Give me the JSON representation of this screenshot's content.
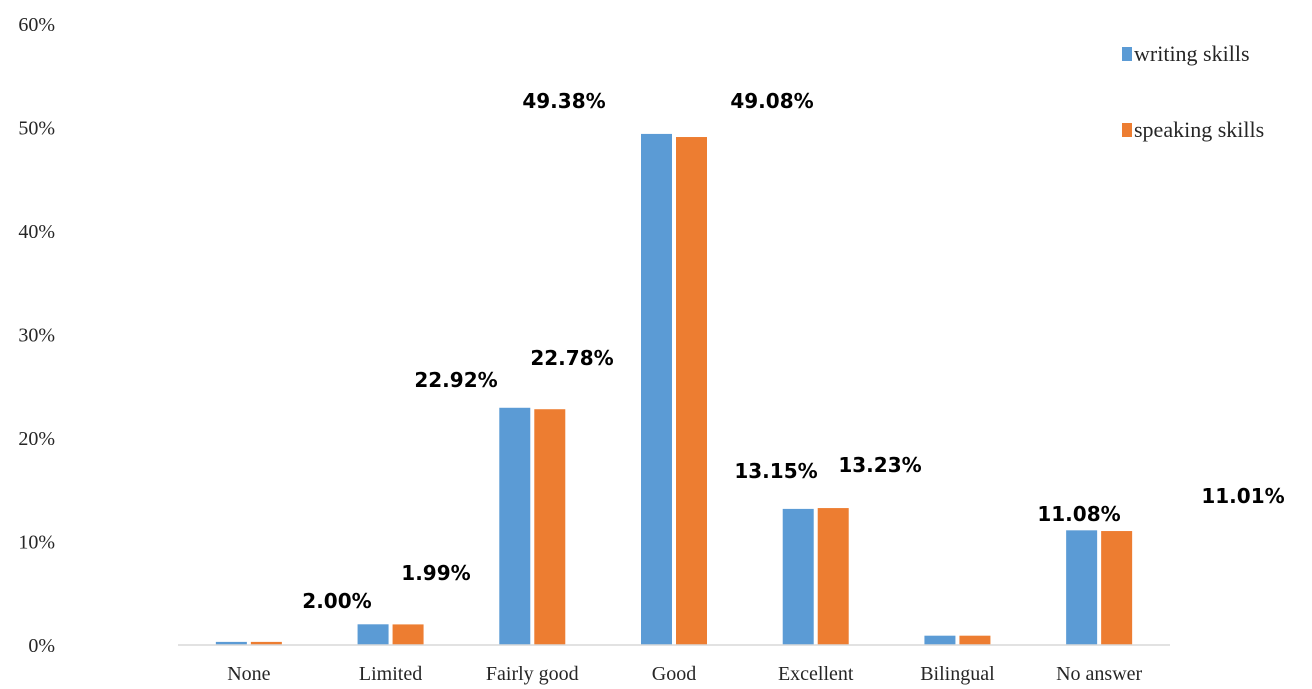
{
  "chart_data": {
    "type": "bar",
    "title": "",
    "xlabel": "",
    "ylabel": "",
    "categories": [
      "None",
      "Limited",
      "Fairly good",
      "Good",
      "Excellent",
      "Bilingual",
      "No answer"
    ],
    "series": [
      {
        "name": "writing skills",
        "color": "#5b9bd5",
        "values": [
          0.3,
          2.0,
          22.92,
          49.38,
          13.15,
          0.9,
          11.08
        ]
      },
      {
        "name": "speaking skills",
        "color": "#ed7d31",
        "values": [
          0.3,
          1.99,
          22.78,
          49.08,
          13.23,
          0.9,
          11.01
        ]
      }
    ],
    "ylim": [
      0,
      60
    ],
    "yticks": [
      0,
      10,
      20,
      30,
      40,
      50,
      60
    ],
    "ytick_labels": [
      "0%",
      "10%",
      "20%",
      "30%",
      "40%",
      "50%",
      "60%"
    ],
    "grid": false,
    "legend_position": "top-right",
    "annotations": [
      "2.00%",
      "1.99%",
      "22.92%",
      "22.78%",
      "49.38%",
      "49.08%",
      "13.15%",
      "13.23%",
      "11.08%",
      "11.01%"
    ]
  }
}
